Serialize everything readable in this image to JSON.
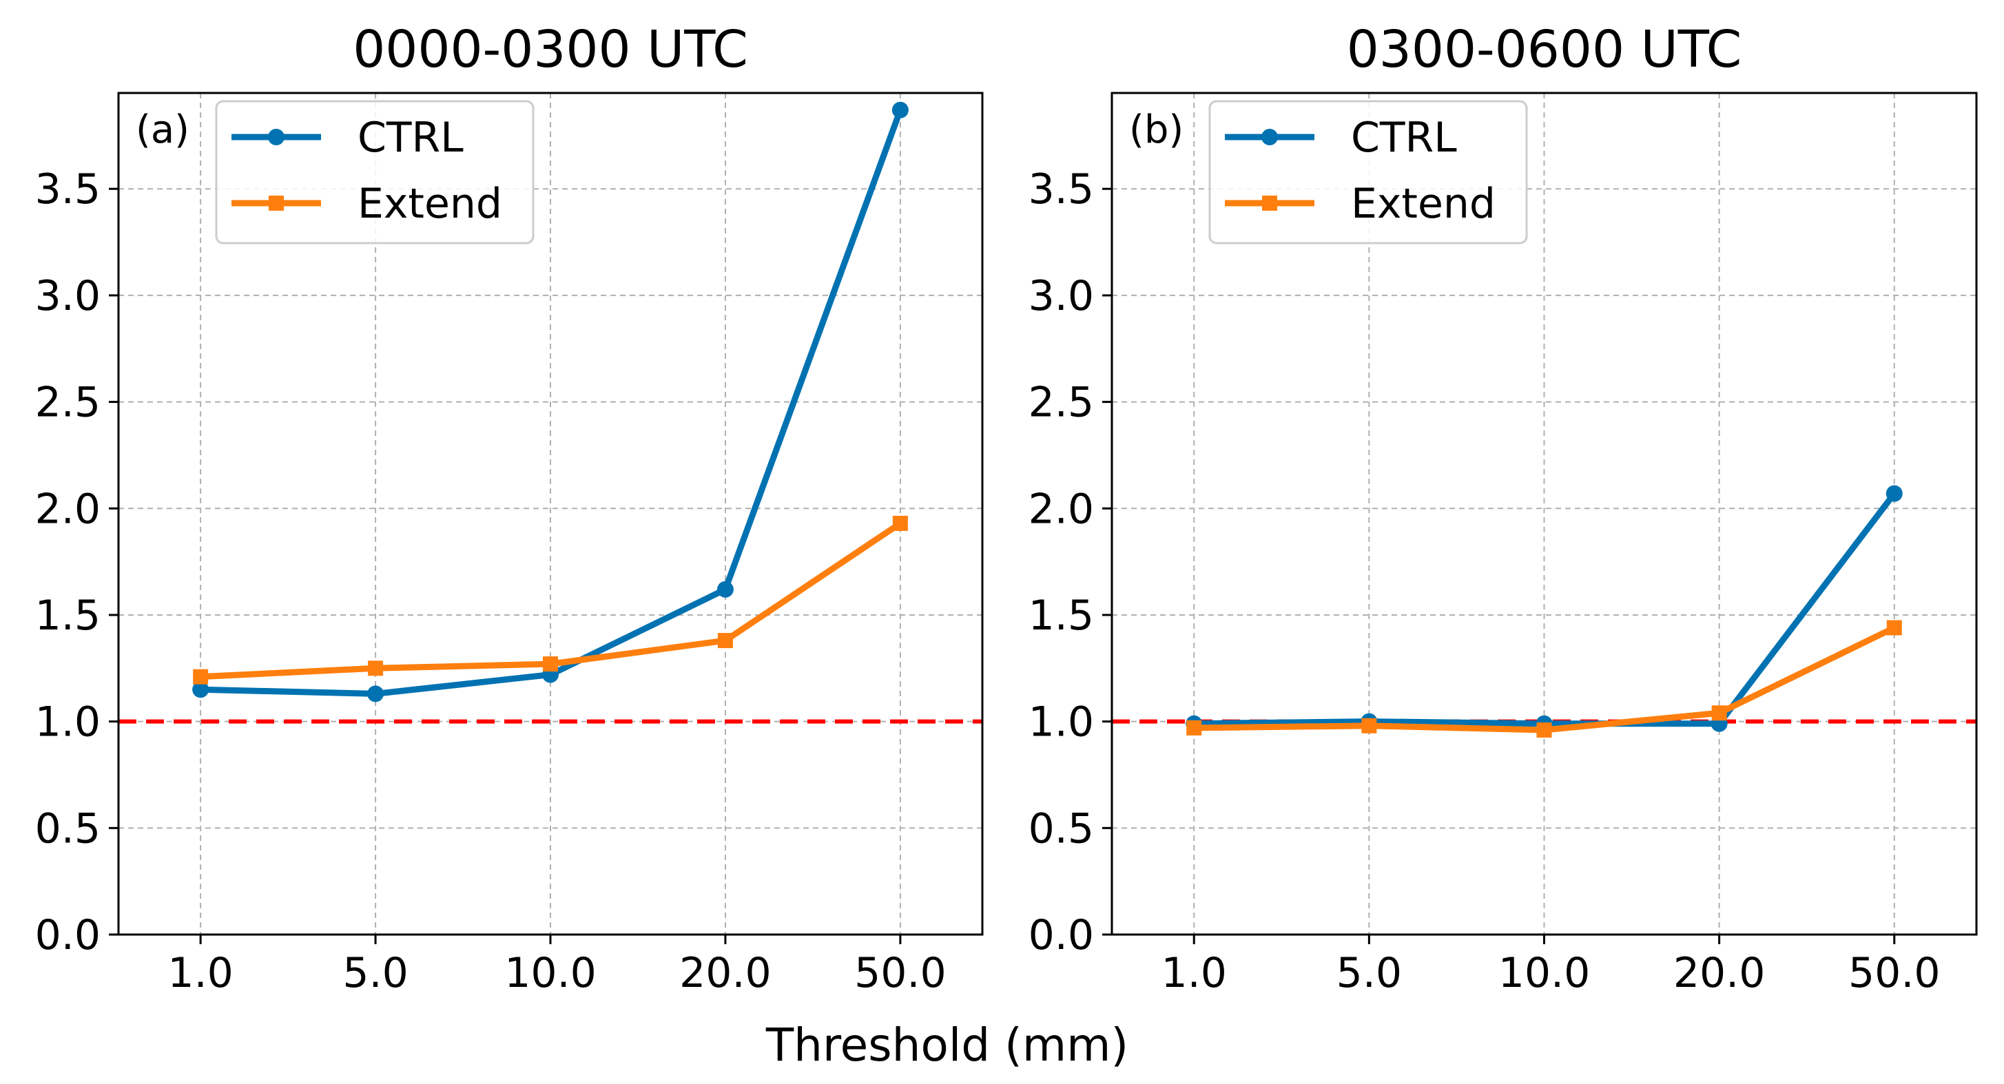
{
  "figure": {
    "xlabel": "Threshold (mm)"
  },
  "chart_data": [
    {
      "type": "line",
      "panel_label": "(a)",
      "title": "0000-0300 UTC",
      "categories": [
        "1.0",
        "5.0",
        "10.0",
        "20.0",
        "50.0"
      ],
      "series": [
        {
          "name": "CTRL",
          "color": "#0072B2",
          "marker": "circle",
          "values": [
            1.15,
            1.13,
            1.22,
            1.62,
            3.87
          ]
        },
        {
          "name": "Extend",
          "color": "#FF7F0E",
          "marker": "square",
          "values": [
            1.21,
            1.25,
            1.27,
            1.38,
            1.93
          ]
        }
      ],
      "reference_line": {
        "y": 1.0,
        "color": "#FF0000",
        "style": "dashed"
      },
      "ylim": [
        0.0,
        3.95
      ],
      "yticks": [
        "0.0",
        "0.5",
        "1.0",
        "1.5",
        "2.0",
        "2.5",
        "3.0",
        "3.5"
      ],
      "grid": true,
      "legend": "top-left"
    },
    {
      "type": "line",
      "panel_label": "(b)",
      "title": "0300-0600 UTC",
      "categories": [
        "1.0",
        "5.0",
        "10.0",
        "20.0",
        "50.0"
      ],
      "series": [
        {
          "name": "CTRL",
          "color": "#0072B2",
          "marker": "circle",
          "values": [
            0.99,
            1.0,
            0.99,
            0.99,
            2.07
          ]
        },
        {
          "name": "Extend",
          "color": "#FF7F0E",
          "marker": "square",
          "values": [
            0.97,
            0.98,
            0.96,
            1.04,
            1.44
          ]
        }
      ],
      "reference_line": {
        "y": 1.0,
        "color": "#FF0000",
        "style": "dashed"
      },
      "ylim": [
        0.0,
        3.95
      ],
      "yticks": [
        "0.0",
        "0.5",
        "1.0",
        "1.5",
        "2.0",
        "2.5",
        "3.0",
        "3.5"
      ],
      "grid": true,
      "legend": "top-left"
    }
  ]
}
